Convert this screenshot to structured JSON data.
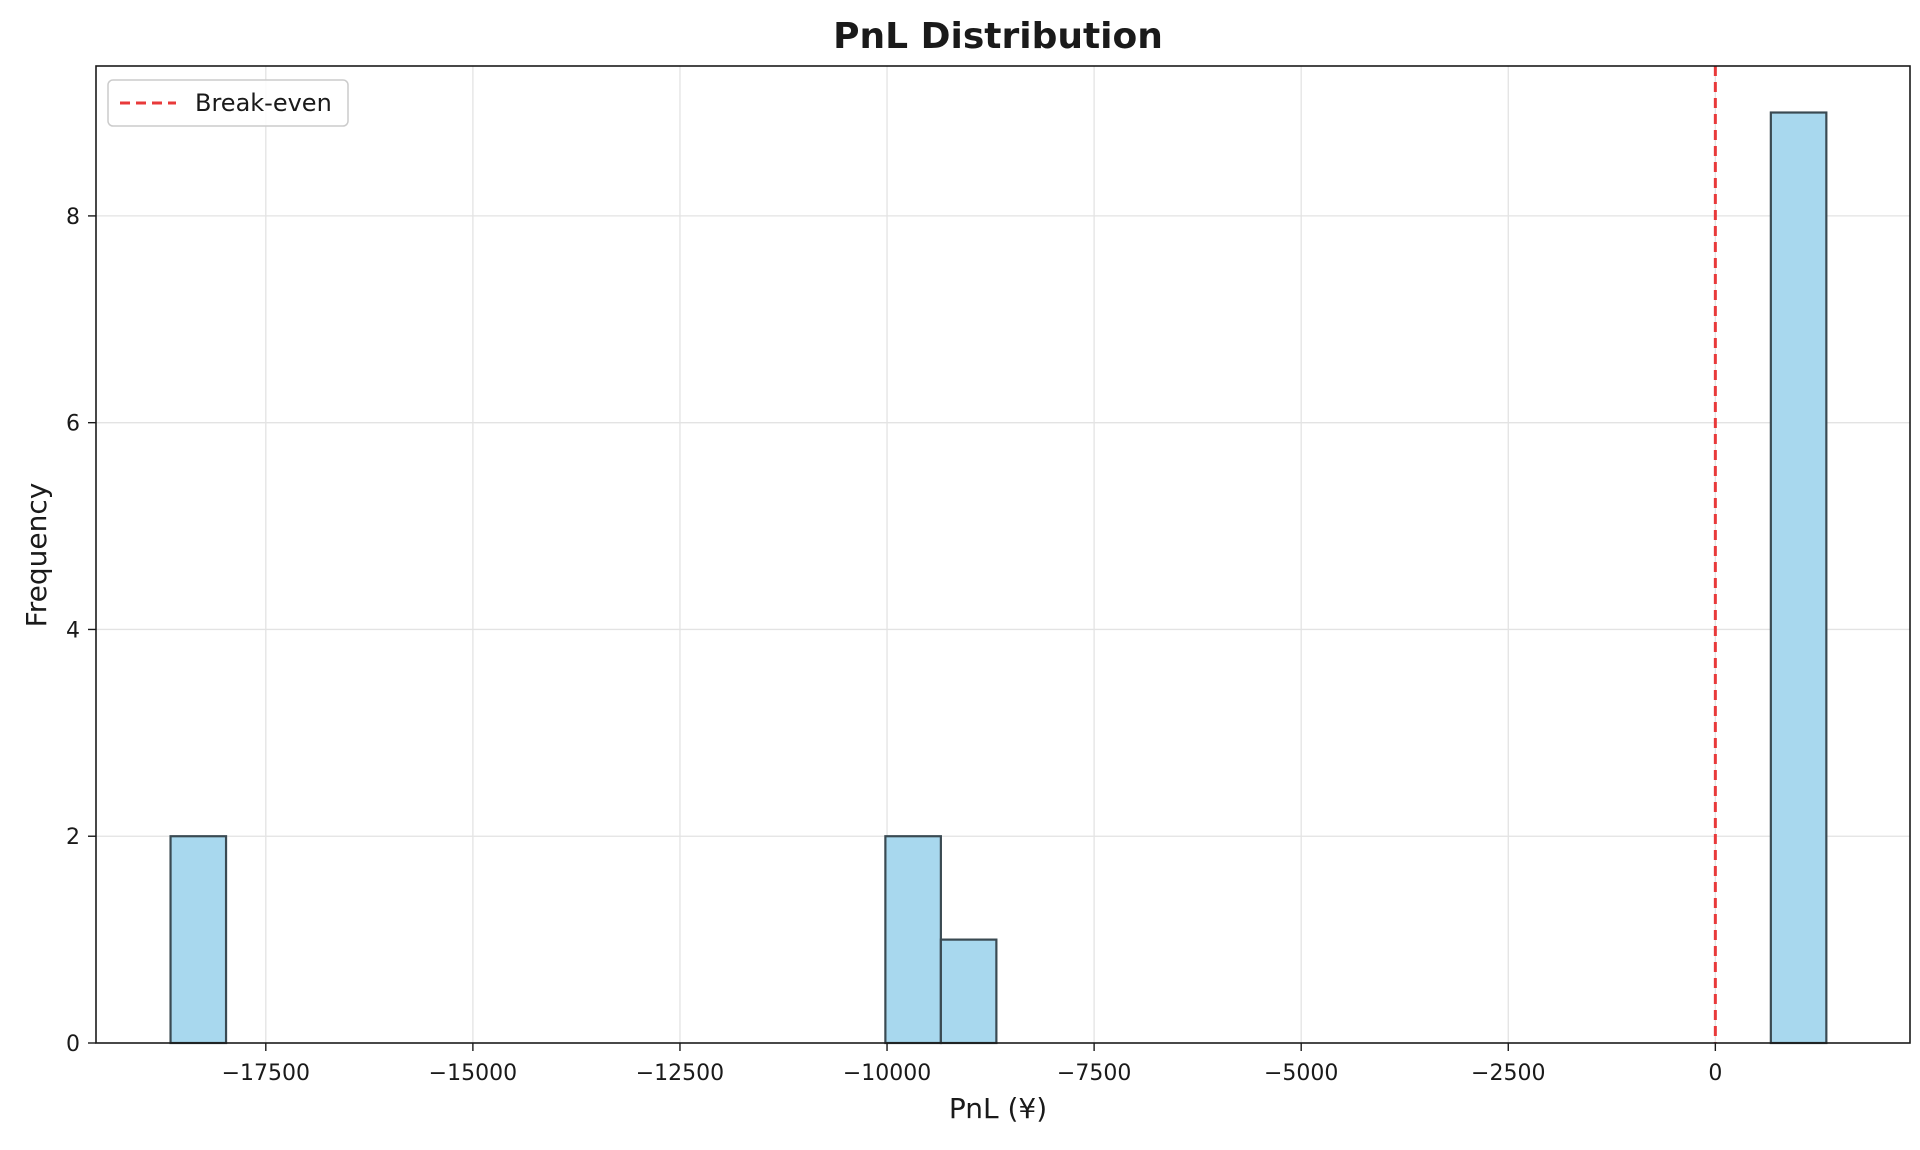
{
  "chart_data": {
    "type": "bar",
    "title": "PnL Distribution",
    "xlabel": "PnL (¥)",
    "ylabel": "Frequency",
    "xlim": [
      -19550,
      2350
    ],
    "ylim": [
      0,
      9.45
    ],
    "xticks": [
      -17500,
      -15000,
      -12500,
      -10000,
      -7500,
      -5000,
      -2500,
      0
    ],
    "xtick_labels": [
      "−17500",
      "−15000",
      "−12500",
      "−10000",
      "−7500",
      "−5000",
      "−2500",
      "0"
    ],
    "yticks": [
      0,
      2,
      4,
      6,
      8
    ],
    "ytick_labels": [
      "0",
      "2",
      "4",
      "6",
      "8"
    ],
    "bins": [
      {
        "x0": -18650,
        "x1": -17980,
        "count": 2
      },
      {
        "x0": -10020,
        "x1": -9350,
        "count": 2
      },
      {
        "x0": -9350,
        "x1": -8680,
        "count": 1
      },
      {
        "x0": 670,
        "x1": 1340,
        "count": 9
      }
    ],
    "reference_line": {
      "x": 0,
      "label": "Break-even",
      "color": "#e8393a",
      "style": "dashed"
    },
    "legend": {
      "position": "top-left",
      "entries": [
        "Break-even"
      ]
    },
    "grid": true,
    "bar_color": "#a8d8ee",
    "bar_edge_color": "#3a4a52"
  }
}
